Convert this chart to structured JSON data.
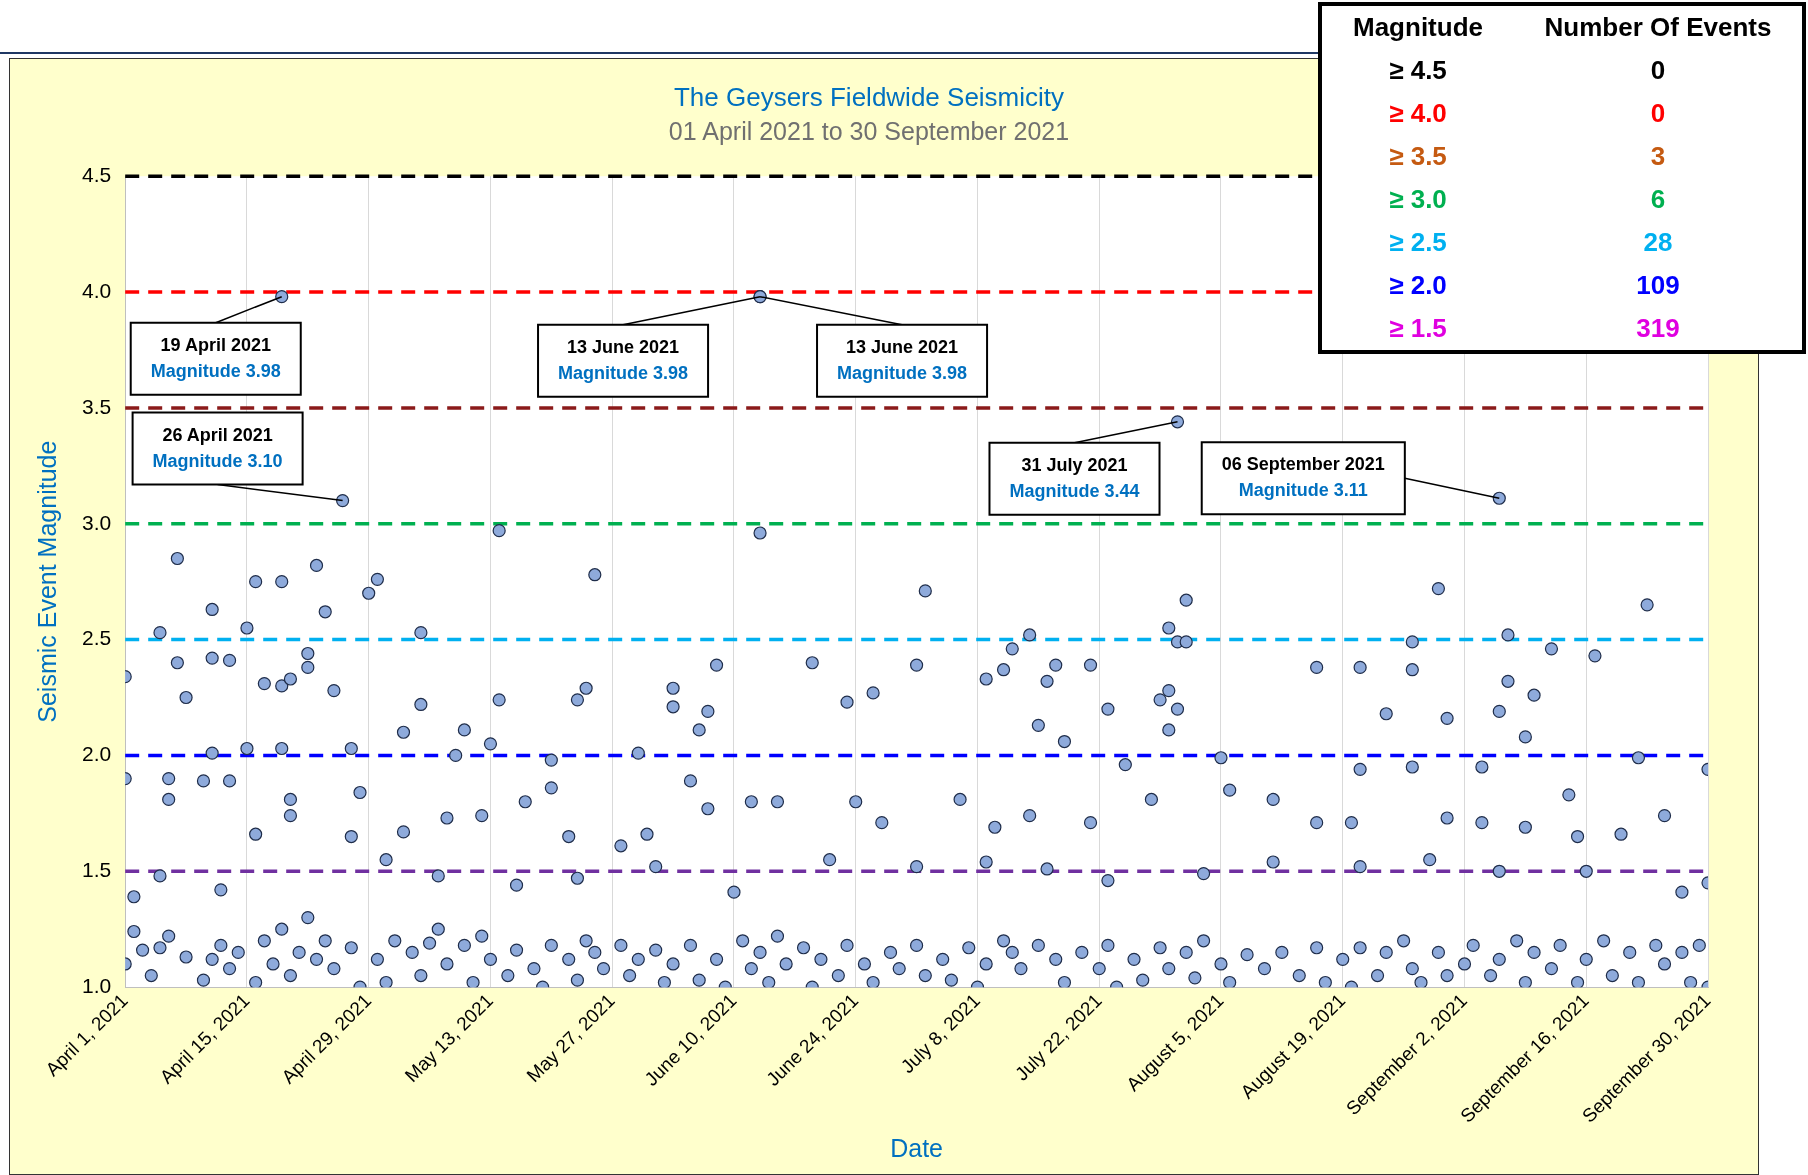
{
  "chart_data": {
    "type": "scatter",
    "title": "The Geysers Fieldwide Seismicity",
    "subtitle": "01 April 2021 to 30 September 2021",
    "xlabel": "Date",
    "ylabel": "Seismic Event Magnitude",
    "color": "#8eaadb",
    "marker": "circle",
    "grid": "x",
    "legend": false,
    "xlim": [
      "2021-04-01",
      "2021-09-30"
    ],
    "xticks": [
      {
        "value": "2021-04-01",
        "label": "April 1, 2021"
      },
      {
        "value": "2021-04-15",
        "label": "April 15, 2021"
      },
      {
        "value": "2021-04-29",
        "label": "April 29, 2021"
      },
      {
        "value": "2021-05-13",
        "label": "May 13, 2021"
      },
      {
        "value": "2021-05-27",
        "label": "May 27, 2021"
      },
      {
        "value": "2021-06-10",
        "label": "June 10, 2021"
      },
      {
        "value": "2021-06-24",
        "label": "June 24, 2021"
      },
      {
        "value": "2021-07-08",
        "label": "July 8, 2021"
      },
      {
        "value": "2021-07-22",
        "label": "July 22, 2021"
      },
      {
        "value": "2021-08-05",
        "label": "August 5, 2021"
      },
      {
        "value": "2021-08-19",
        "label": "August 19, 2021"
      },
      {
        "value": "2021-09-02",
        "label": "September 2, 2021"
      },
      {
        "value": "2021-09-16",
        "label": "September 16, 2021"
      },
      {
        "value": "2021-09-30",
        "label": "September 30, 2021"
      }
    ],
    "ylim": [
      1,
      4.5
    ],
    "yticks": [
      {
        "value": 1,
        "label": "1.0"
      },
      1.5,
      {
        "value": 2,
        "label": "2.0"
      },
      2.5,
      {
        "value": 3,
        "label": "3.0"
      },
      3.5,
      {
        "value": 4,
        "label": "4.0"
      },
      4.5
    ],
    "ref_lines": [
      {
        "axis": "y",
        "value": 4.5,
        "color": "#000000",
        "line_style": "dashed"
      },
      {
        "axis": "y",
        "value": 4.0,
        "color": "#ff0000",
        "line_style": "dashed"
      },
      {
        "axis": "y",
        "value": 3.5,
        "color": "#8b1a1a",
        "line_style": "dashed"
      },
      {
        "axis": "y",
        "value": 3.0,
        "color": "#00b050",
        "line_style": "dashed"
      },
      {
        "axis": "y",
        "value": 2.5,
        "color": "#00b0f0",
        "line_style": "dashed"
      },
      {
        "axis": "y",
        "value": 2.0,
        "color": "#0000ff",
        "line_style": "dashed"
      },
      {
        "axis": "y",
        "value": 1.5,
        "color": "#7030a0",
        "line_style": "dashed"
      }
    ],
    "annotations": [
      {
        "text": "19 April 2021\nMagnitude 3.98",
        "x": "2021-04-19",
        "y": 3.98
      },
      {
        "text": "26 April 2021\nMagnitude 3.10",
        "x": "2021-04-26",
        "y": 3.1
      },
      {
        "text": "13 June 2021\nMagnitude 3.98",
        "x": "2021-06-13",
        "y": 3.98
      },
      {
        "text": "13 June 2021\nMagnitude 3.98",
        "x": "2021-06-13",
        "y": 3.98
      },
      {
        "text": "31 July 2021\nMagnitude 3.44",
        "x": "2021-07-31",
        "y": 3.44
      },
      {
        "text": "06 September 2021\nMagnitude 3.11",
        "x": "2021-09-06",
        "y": 3.11
      },
      "Magnitude",
      "Number Of Events",
      "≥ 4.5",
      "0",
      "≥ 4.0",
      "0",
      "≥ 3.5",
      "3",
      "≥ 3.0",
      "6",
      "≥ 2.5",
      "28",
      "≥ 2.0",
      "109",
      "≥ 1.5",
      "319"
    ],
    "x": [
      "2021-04-19",
      "2021-06-13",
      "2021-06-13",
      "2021-04-26",
      "2021-07-31",
      "2021-09-06",
      "2021-05-14",
      "2021-06-13",
      "2021-05-25",
      "2021-04-07",
      "2021-04-23",
      "2021-04-19",
      "2021-04-16",
      "2021-04-30",
      "2021-04-29",
      "2021-04-11",
      "2021-04-24",
      "2021-07-02",
      "2021-08-30",
      "2021-08-01",
      "2021-09-23",
      "2021-04-01",
      "2021-04-05",
      "2021-04-15",
      "2021-05-05",
      "2021-04-07",
      "2021-04-08",
      "2021-04-11",
      "2021-04-13",
      "2021-04-17",
      "2021-04-19",
      "2021-04-20",
      "2021-04-22",
      "2021-04-25",
      "2021-04-22",
      "2021-05-14",
      "2021-05-05",
      "2021-05-23",
      "2021-05-24",
      "2021-06-03",
      "2021-06-08",
      "2021-06-03",
      "2021-06-07",
      "2021-06-19",
      "2021-06-23",
      "2021-06-26",
      "2021-07-01",
      "2021-07-11",
      "2021-07-09",
      "2021-07-12",
      "2021-07-14",
      "2021-07-16",
      "2021-07-17",
      "2021-07-21",
      "2021-07-23",
      "2021-07-29",
      "2021-07-30",
      "2021-07-31",
      "2021-07-30",
      "2021-07-31",
      "2021-08-01",
      "2021-08-16",
      "2021-08-21",
      "2021-08-24",
      "2021-08-27",
      "2021-08-27",
      "2021-08-31",
      "2021-09-07",
      "2021-09-07",
      "2021-09-06",
      "2021-09-09",
      "2021-09-10",
      "2021-09-12",
      "2021-09-17",
      "2021-09-22",
      "2021-04-01",
      "2021-04-11",
      "2021-04-15",
      "2021-04-19",
      "2021-04-27",
      "2021-05-03",
      "2021-05-09",
      "2021-05-10",
      "2021-05-13",
      "2021-05-20",
      "2021-05-30",
      "2021-06-06",
      "2021-07-15",
      "2021-07-18",
      "2021-08-05",
      "2021-08-21",
      "2021-08-27",
      "2021-09-04",
      "2021-09-30",
      "2021-07-30",
      "2021-07-25",
      "2021-04-06",
      "2021-04-06",
      "2021-04-10",
      "2021-04-13",
      "2021-04-20",
      "2021-04-16",
      "2021-04-20",
      "2021-04-27",
      "2021-04-28",
      "2021-05-03",
      "2021-05-08",
      "2021-05-12",
      "2021-05-17",
      "2021-05-20",
      "2021-05-22",
      "2021-05-28",
      "2021-05-31",
      "2021-06-05",
      "2021-06-07",
      "2021-06-12",
      "2021-06-15",
      "2021-06-24",
      "2021-06-27",
      "2021-07-06",
      "2021-07-10",
      "2021-07-14",
      "2021-07-21",
      "2021-07-28",
      "2021-08-06",
      "2021-08-11",
      "2021-08-16",
      "2021-08-20",
      "2021-08-31",
      "2021-09-04",
      "2021-09-09",
      "2021-09-14",
      "2021-09-25",
      "2021-09-15",
      "2021-09-20",
      "2021-04-02",
      "2021-04-05",
      "2021-04-12",
      "2021-05-01",
      "2021-05-07",
      "2021-05-16",
      "2021-05-23",
      "2021-06-01",
      "2021-06-10",
      "2021-06-21",
      "2021-07-01",
      "2021-07-09",
      "2021-07-16",
      "2021-07-23",
      "2021-08-03",
      "2021-08-11",
      "2021-08-21",
      "2021-08-29",
      "2021-09-06",
      "2021-09-16",
      "2021-09-27",
      "2021-09-30",
      "2021-04-01",
      "2021-04-02",
      "2021-04-03",
      "2021-04-04",
      "2021-04-05",
      "2021-04-06",
      "2021-04-08",
      "2021-04-10",
      "2021-04-11",
      "2021-04-12",
      "2021-04-13",
      "2021-04-14",
      "2021-04-16",
      "2021-04-17",
      "2021-04-18",
      "2021-04-19",
      "2021-04-20",
      "2021-04-21",
      "2021-04-22",
      "2021-04-23",
      "2021-04-24",
      "2021-04-25",
      "2021-04-27",
      "2021-04-28",
      "2021-04-30",
      "2021-05-01",
      "2021-05-02",
      "2021-05-04",
      "2021-05-05",
      "2021-05-06",
      "2021-05-07",
      "2021-05-08",
      "2021-05-10",
      "2021-05-11",
      "2021-05-12",
      "2021-05-13",
      "2021-05-15",
      "2021-05-16",
      "2021-05-18",
      "2021-05-19",
      "2021-05-20",
      "2021-05-22",
      "2021-05-23",
      "2021-05-24",
      "2021-05-25",
      "2021-05-26",
      "2021-05-28",
      "2021-05-29",
      "2021-05-30",
      "2021-06-01",
      "2021-06-02",
      "2021-06-03",
      "2021-06-05",
      "2021-06-06",
      "2021-06-08",
      "2021-06-09",
      "2021-06-11",
      "2021-06-12",
      "2021-06-13",
      "2021-06-14",
      "2021-06-15",
      "2021-06-16",
      "2021-06-18",
      "2021-06-19",
      "2021-06-20",
      "2021-06-22",
      "2021-06-23",
      "2021-06-25",
      "2021-06-26",
      "2021-06-28",
      "2021-06-29",
      "2021-07-01",
      "2021-07-02",
      "2021-07-04",
      "2021-07-05",
      "2021-07-07",
      "2021-07-08",
      "2021-07-09",
      "2021-07-11",
      "2021-07-12",
      "2021-07-13",
      "2021-07-15",
      "2021-07-17",
      "2021-07-18",
      "2021-07-20",
      "2021-07-22",
      "2021-07-23",
      "2021-07-24",
      "2021-07-26",
      "2021-07-27",
      "2021-07-29",
      "2021-07-30",
      "2021-08-01",
      "2021-08-02",
      "2021-08-03",
      "2021-08-05",
      "2021-08-06",
      "2021-08-08",
      "2021-08-10",
      "2021-08-12",
      "2021-08-14",
      "2021-08-16",
      "2021-08-17",
      "2021-08-19",
      "2021-08-20",
      "2021-08-21",
      "2021-08-23",
      "2021-08-24",
      "2021-08-26",
      "2021-08-27",
      "2021-08-28",
      "2021-08-30",
      "2021-08-31",
      "2021-09-02",
      "2021-09-03",
      "2021-09-05",
      "2021-09-06",
      "2021-09-08",
      "2021-09-09",
      "2021-09-10",
      "2021-09-12",
      "2021-09-13",
      "2021-09-15",
      "2021-09-16",
      "2021-09-18",
      "2021-09-19",
      "2021-09-21",
      "2021-09-22",
      "2021-09-24",
      "2021-09-25",
      "2021-09-27",
      "2021-09-28",
      "2021-09-29",
      "2021-09-30"
    ],
    "values": [
      3.98,
      3.98,
      3.98,
      3.1,
      3.44,
      3.11,
      2.97,
      2.96,
      2.78,
      2.85,
      2.82,
      2.75,
      2.75,
      2.76,
      2.7,
      2.63,
      2.62,
      2.71,
      2.72,
      2.67,
      2.65,
      2.34,
      2.53,
      2.55,
      2.53,
      2.4,
      2.25,
      2.42,
      2.41,
      2.31,
      2.3,
      2.33,
      2.44,
      2.28,
      2.38,
      2.24,
      2.22,
      2.24,
      2.29,
      2.29,
      2.39,
      2.21,
      2.19,
      2.4,
      2.23,
      2.27,
      2.39,
      2.37,
      2.33,
      2.46,
      2.52,
      2.32,
      2.39,
      2.39,
      2.2,
      2.24,
      2.28,
      2.2,
      2.55,
      2.49,
      2.49,
      2.38,
      2.38,
      2.18,
      2.49,
      2.37,
      2.16,
      2.52,
      2.32,
      2.19,
      2.08,
      2.26,
      2.46,
      2.43,
      1.99,
      1.9,
      2.01,
      2.03,
      2.03,
      2.03,
      2.1,
      2.0,
      2.11,
      2.05,
      1.98,
      2.01,
      2.11,
      2.13,
      2.06,
      1.99,
      1.94,
      1.95,
      1.95,
      1.94,
      2.11,
      1.96,
      1.81,
      1.9,
      1.89,
      1.89,
      1.81,
      1.66,
      1.74,
      1.65,
      1.84,
      1.67,
      1.73,
      1.74,
      1.8,
      1.86,
      1.65,
      1.61,
      1.66,
      1.89,
      1.77,
      1.8,
      1.8,
      1.8,
      1.71,
      1.81,
      1.69,
      1.74,
      1.71,
      1.81,
      1.85,
      1.81,
      1.71,
      1.71,
      1.73,
      1.71,
      1.69,
      1.83,
      1.74,
      1.65,
      1.66,
      1.39,
      1.48,
      1.42,
      1.55,
      1.48,
      1.44,
      1.47,
      1.52,
      1.41,
      1.55,
      1.52,
      1.54,
      1.51,
      1.46,
      1.49,
      1.54,
      1.52,
      1.55,
      1.5,
      1.5,
      1.41,
      1.45,
      1.1,
      1.24,
      1.16,
      1.05,
      1.17,
      1.22,
      1.13,
      1.03,
      1.12,
      1.18,
      1.08,
      1.15,
      1.02,
      1.2,
      1.1,
      1.25,
      1.05,
      1.15,
      1.3,
      1.12,
      1.2,
      1.08,
      1.17,
      1.0,
      1.12,
      1.02,
      1.2,
      1.15,
      1.05,
      1.19,
      1.25,
      1.1,
      1.18,
      1.02,
      1.22,
      1.12,
      1.05,
      1.16,
      1.08,
      1.0,
      1.18,
      1.12,
      1.03,
      1.2,
      1.15,
      1.08,
      1.18,
      1.05,
      1.12,
      1.16,
      1.02,
      1.1,
      1.18,
      1.03,
      1.12,
      1.0,
      1.2,
      1.08,
      1.15,
      1.02,
      1.22,
      1.1,
      1.17,
      1.0,
      1.12,
      1.05,
      1.18,
      1.1,
      1.02,
      1.15,
      1.08,
      1.18,
      1.05,
      1.12,
      1.03,
      1.17,
      1.0,
      1.1,
      1.2,
      1.15,
      1.08,
      1.18,
      1.12,
      1.02,
      1.15,
      1.08,
      1.18,
      1.0,
      1.12,
      1.03,
      1.17,
      1.08,
      1.15,
      1.04,
      1.2,
      1.1,
      1.02,
      1.14,
      1.08,
      1.15,
      1.05,
      1.17,
      1.02,
      1.12,
      1.0,
      1.17,
      1.05,
      1.15,
      1.2,
      1.08,
      1.02,
      1.15,
      1.05,
      1.1,
      1.18,
      1.05,
      1.12,
      1.2,
      1.02,
      1.15,
      1.08,
      1.18,
      1.02,
      1.12,
      1.2,
      1.05,
      1.15,
      1.02,
      1.18,
      1.1,
      1.15,
      1.02,
      1.18,
      1.0
    ]
  }
}
